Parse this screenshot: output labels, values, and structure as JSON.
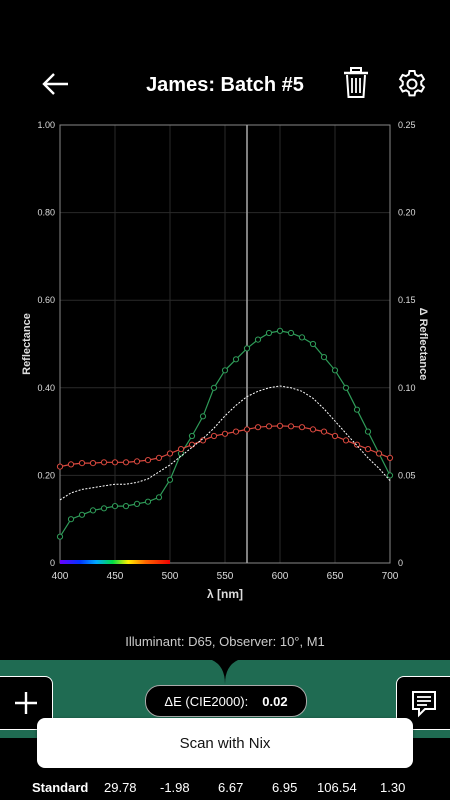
{
  "header": {
    "title": "James: Batch #5",
    "back_icon": "arrow-left-icon",
    "trash_icon": "trash-icon",
    "settings_icon": "gear-icon"
  },
  "chart_data": {
    "type": "line",
    "xlabel": "λ [nm]",
    "ylabel": "Reflectance",
    "y2label": "Δ Reflectance",
    "xlim": [
      400,
      700
    ],
    "ylim": [
      0,
      1.0
    ],
    "y2lim": [
      0,
      0.25
    ],
    "x_ticks": [
      "400",
      "450",
      "500",
      "550",
      "600",
      "650",
      "700"
    ],
    "y_ticks": [
      "0",
      "0.20",
      "0.40",
      "0.60",
      "0.80",
      "1.00"
    ],
    "y2_ticks": [
      "0",
      "0.05",
      "0.10",
      "0.15",
      "0.20",
      "0.25"
    ],
    "cursor_x": 570,
    "grid": true,
    "x": [
      400,
      410,
      420,
      430,
      440,
      450,
      460,
      470,
      480,
      490,
      500,
      510,
      520,
      530,
      540,
      550,
      560,
      570,
      580,
      590,
      600,
      610,
      620,
      630,
      640,
      650,
      660,
      670,
      680,
      690,
      700
    ],
    "series": [
      {
        "axis": "left",
        "color": "#2f9c59",
        "marker": true,
        "values": [
          0.06,
          0.1,
          0.11,
          0.12,
          0.125,
          0.13,
          0.13,
          0.135,
          0.14,
          0.15,
          0.19,
          0.25,
          0.29,
          0.335,
          0.4,
          0.44,
          0.465,
          0.49,
          0.51,
          0.525,
          0.53,
          0.525,
          0.515,
          0.5,
          0.47,
          0.44,
          0.4,
          0.35,
          0.3,
          0.25,
          0.2
        ]
      },
      {
        "axis": "left",
        "color": "#d9493f",
        "marker": true,
        "values": [
          0.22,
          0.225,
          0.228,
          0.228,
          0.23,
          0.23,
          0.23,
          0.232,
          0.235,
          0.24,
          0.25,
          0.26,
          0.27,
          0.28,
          0.29,
          0.295,
          0.3,
          0.305,
          0.31,
          0.312,
          0.313,
          0.312,
          0.31,
          0.305,
          0.3,
          0.29,
          0.28,
          0.27,
          0.26,
          0.25,
          0.24
        ]
      },
      {
        "axis": "right",
        "color": "#ffffff",
        "dashed": true,
        "marker": false,
        "values": [
          0.036,
          0.04,
          0.042,
          0.043,
          0.044,
          0.045,
          0.045,
          0.046,
          0.048,
          0.052,
          0.056,
          0.061,
          0.066,
          0.071,
          0.077,
          0.084,
          0.09,
          0.095,
          0.098,
          0.1,
          0.101,
          0.1,
          0.098,
          0.094,
          0.088,
          0.081,
          0.074,
          0.067,
          0.06,
          0.054,
          0.047
        ]
      }
    ]
  },
  "illuminant_text": "Illuminant: D65, Observer: 10°, M1",
  "delta_e": {
    "label": "ΔE (CIE2000):",
    "value": "0.02"
  },
  "add_icon": "plus-icon",
  "comment_icon": "comment-icon",
  "scan_label": "Scan with Nix",
  "standard_row": {
    "label": "Standard",
    "values": [
      "29.78",
      "-1.98",
      "6.67",
      "6.95",
      "106.54",
      "1.30"
    ]
  },
  "colors": {
    "accent": "#1f6b52",
    "background": "#000000"
  }
}
